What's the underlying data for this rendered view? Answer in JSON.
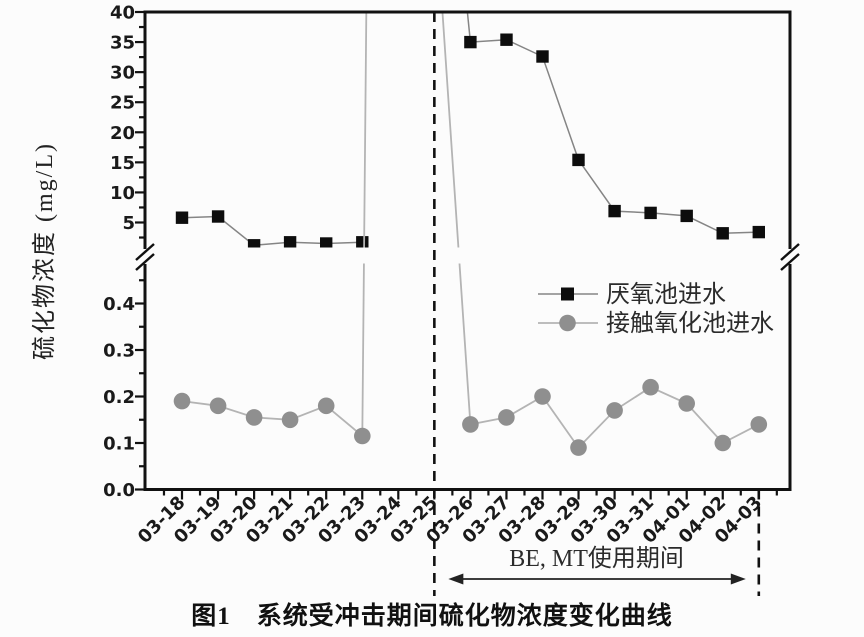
{
  "figure": {
    "caption": "图1　系统受冲击期间硫化物浓度变化曲线",
    "background": "#fcfcfc"
  },
  "chart_data": {
    "type": "line",
    "title": "",
    "xlabel": "",
    "ylabel": "硫化物浓度 (mg/L)",
    "grid": false,
    "categories": [
      "03-18",
      "03-19",
      "03-20",
      "03-21",
      "03-22",
      "03-23",
      "03-24",
      "03-25",
      "03-26",
      "03-27",
      "03-28",
      "03-29",
      "03-30",
      "03-31",
      "04-01",
      "04-02",
      "04-03"
    ],
    "y_axis": {
      "broken": true,
      "top_panel": {
        "ylim": [
          0,
          40
        ],
        "ticks": [
          5,
          10,
          15,
          20,
          25,
          30,
          35,
          40
        ],
        "tick_labels": [
          "5",
          "10",
          "15",
          "20",
          "25",
          "30",
          "35",
          "40"
        ],
        "minor_step": 2.5
      },
      "bottom_panel": {
        "ylim": [
          0,
          0.5
        ],
        "ticks": [
          0,
          0.1,
          0.2,
          0.3,
          0.4
        ],
        "tick_labels": [
          "0.0",
          "0.1",
          "0.2",
          "0.3",
          "0.4"
        ],
        "minor_step": 0.05
      }
    },
    "series": [
      {
        "name": "厌氧池进水",
        "marker": "square",
        "marker_color": "#0d0d0d",
        "line_color": "#858585",
        "values": [
          5.8,
          6.0,
          1.2,
          1.7,
          1.5,
          1.7,
          null,
          95,
          35,
          35.4,
          32.6,
          15.4,
          6.9,
          6.6,
          6.1,
          3.2,
          3.4
        ]
      },
      {
        "name": "接触氧化池进水",
        "marker": "circle",
        "marker_color": "#8f8f8f",
        "line_color": "#b4b4b4",
        "values": [
          0.19,
          0.18,
          0.155,
          0.15,
          0.18,
          0.115,
          600,
          60,
          0.14,
          0.155,
          0.2,
          0.09,
          0.17,
          0.22,
          0.185,
          0.1,
          0.14
        ]
      }
    ],
    "off_scale_points": {
      "厌氧池进水": [
        "03-25"
      ],
      "接触氧化池进水": [
        "03-24",
        "03-25"
      ]
    },
    "legend": {
      "position": "middle-right",
      "entries": [
        "厌氧池进水",
        "接触氧化池进水"
      ]
    },
    "annotations": {
      "dashed_line_dates": [
        "03-25",
        "04-03"
      ],
      "period_label": "BE, MT使用期间"
    }
  }
}
